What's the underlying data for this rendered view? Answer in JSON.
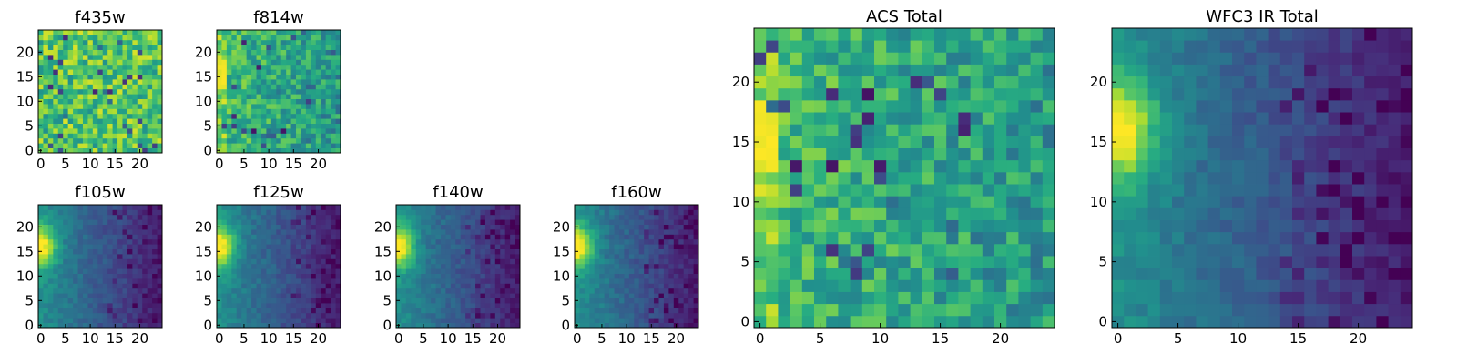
{
  "chart_data": [
    {
      "type": "heatmap",
      "title": "f435w",
      "colormap": "viridis",
      "xlim": [
        -0.5,
        24.5
      ],
      "ylim": [
        -0.5,
        24.5
      ],
      "xticks": [
        "0",
        "5",
        "10",
        "15",
        "20"
      ],
      "yticks": [
        "0",
        "5",
        "10",
        "15",
        "20"
      ],
      "grid": false,
      "pattern": "uniform-noise"
    },
    {
      "type": "heatmap",
      "title": "f814w",
      "colormap": "viridis",
      "xlim": [
        -0.5,
        24.5
      ],
      "ylim": [
        -0.5,
        24.5
      ],
      "xticks": [
        "0",
        "5",
        "10",
        "15",
        "20"
      ],
      "yticks": [
        "0",
        "5",
        "10",
        "15",
        "20"
      ],
      "grid": false,
      "pattern": "noise-bright-left"
    },
    {
      "type": "heatmap",
      "title": "f105w",
      "colormap": "viridis",
      "xlim": [
        -0.5,
        24.5
      ],
      "ylim": [
        -0.5,
        24.5
      ],
      "xticks": [
        "0",
        "5",
        "10",
        "15",
        "20"
      ],
      "yticks": [
        "0",
        "5",
        "10",
        "15",
        "20"
      ],
      "grid": false,
      "pattern": "peak-left-y16"
    },
    {
      "type": "heatmap",
      "title": "f125w",
      "colormap": "viridis",
      "xlim": [
        -0.5,
        24.5
      ],
      "ylim": [
        -0.5,
        24.5
      ],
      "xticks": [
        "0",
        "5",
        "10",
        "15",
        "20"
      ],
      "yticks": [
        "0",
        "5",
        "10",
        "15",
        "20"
      ],
      "grid": false,
      "pattern": "peak-left-y16"
    },
    {
      "type": "heatmap",
      "title": "f140w",
      "colormap": "viridis",
      "xlim": [
        -0.5,
        24.5
      ],
      "ylim": [
        -0.5,
        24.5
      ],
      "xticks": [
        "0",
        "5",
        "10",
        "15",
        "20"
      ],
      "yticks": [
        "0",
        "5",
        "10",
        "15",
        "20"
      ],
      "grid": false,
      "pattern": "peak-left-y16"
    },
    {
      "type": "heatmap",
      "title": "f160w",
      "colormap": "viridis",
      "xlim": [
        -0.5,
        24.5
      ],
      "ylim": [
        -0.5,
        24.5
      ],
      "xticks": [
        "0",
        "5",
        "10",
        "15",
        "20"
      ],
      "yticks": [
        "0",
        "5",
        "10",
        "15",
        "20"
      ],
      "grid": false,
      "pattern": "peak-left-y16"
    },
    {
      "type": "heatmap",
      "title": "ACS Total",
      "colormap": "viridis",
      "xlim": [
        -0.5,
        24.5
      ],
      "ylim": [
        -0.5,
        24.5
      ],
      "xticks": [
        "0",
        "5",
        "10",
        "15",
        "20"
      ],
      "yticks": [
        "0",
        "5",
        "10",
        "15",
        "20"
      ],
      "grid": false,
      "pattern": "noise-bright-left"
    },
    {
      "type": "heatmap",
      "title": "WFC3 IR Total",
      "colormap": "viridis",
      "xlim": [
        -0.5,
        24.5
      ],
      "ylim": [
        -0.5,
        24.5
      ],
      "xticks": [
        "0",
        "5",
        "10",
        "15",
        "20"
      ],
      "yticks": [
        "0",
        "5",
        "10",
        "15",
        "20"
      ],
      "grid": false,
      "pattern": "peak-left-y16"
    }
  ]
}
